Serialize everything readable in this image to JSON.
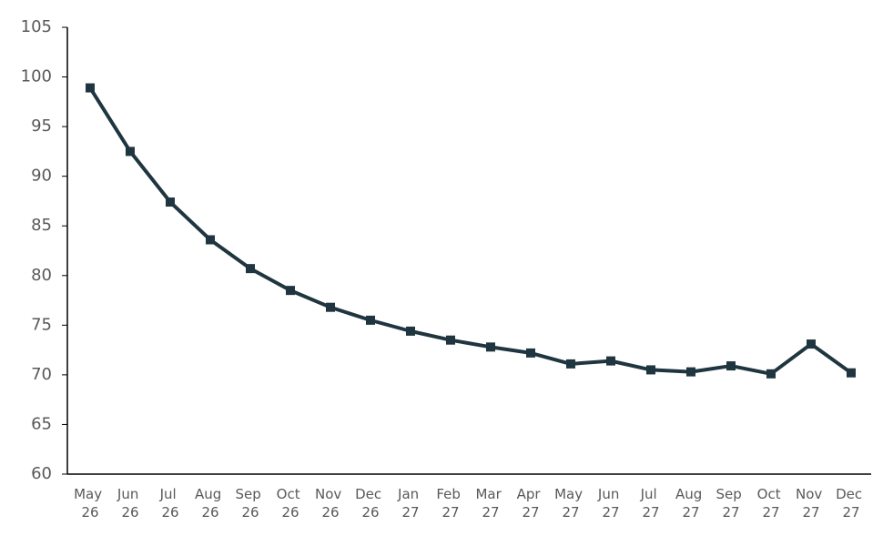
{
  "chart_data": {
    "type": "line",
    "categories": [
      "May 26",
      "Jun 26",
      "Jul 26",
      "Aug 26",
      "Sep 26",
      "Oct 26",
      "Nov 26",
      "Dec 26",
      "Jan 27",
      "Feb 27",
      "Mar 27",
      "Apr 27",
      "May 27",
      "Jun 27",
      "Jul 27",
      "Aug 27",
      "Sep 27",
      "Oct 27",
      "Nov 27",
      "Dec 27"
    ],
    "values": [
      98.9,
      92.5,
      87.4,
      83.6,
      80.7,
      78.5,
      76.8,
      75.5,
      74.4,
      73.5,
      72.8,
      72.2,
      71.1,
      71.4,
      70.5,
      70.3,
      70.9,
      70.1,
      73.1,
      70.2
    ],
    "color": "#1f3540",
    "ylim": [
      60,
      105
    ],
    "yticks": [
      60,
      65,
      70,
      75,
      80,
      85,
      90,
      95,
      100,
      105
    ],
    "grid": false
  }
}
